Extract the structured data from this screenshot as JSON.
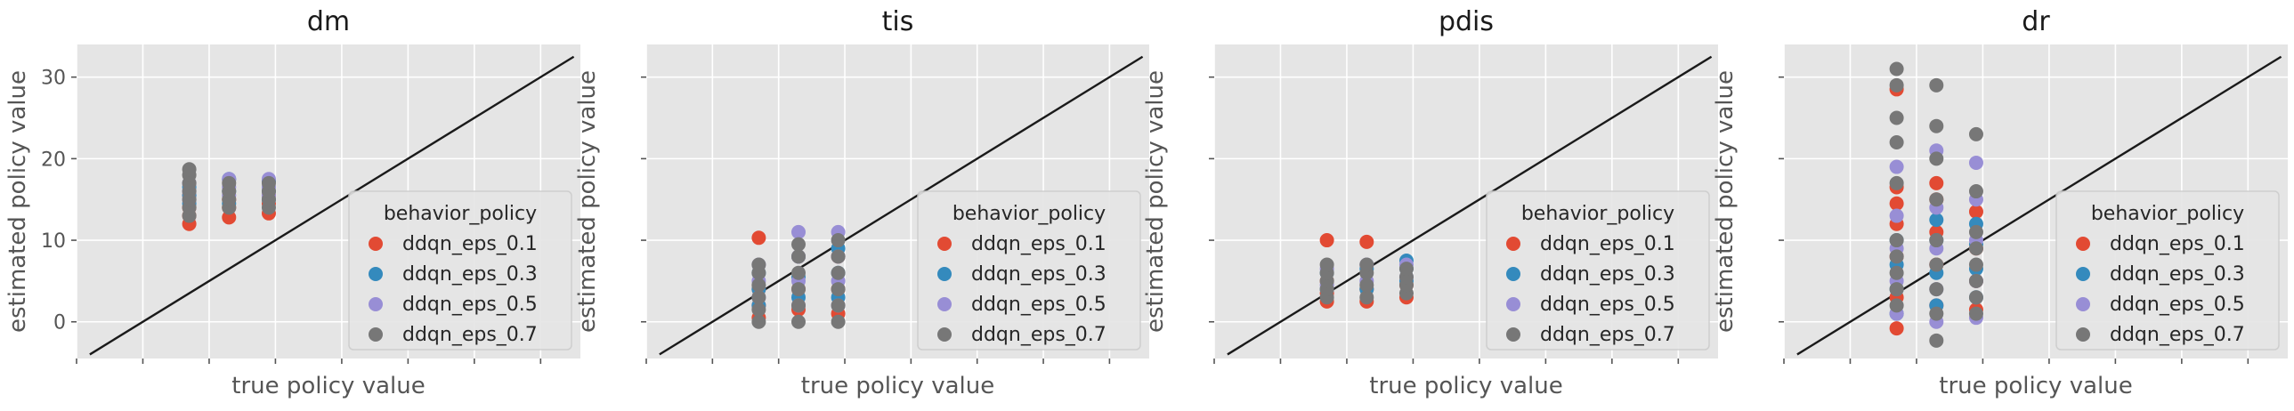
{
  "figure": {
    "legend_title": "behavior_policy",
    "colors": {
      "ddqn_eps_0.1": "#E24A33",
      "ddqn_eps_0.3": "#348ABD",
      "ddqn_eps_0.5": "#988ED5",
      "ddqn_eps_0.7": "#777777",
      "panel_bg": "#E5E5E5",
      "grid": "#FFFFFF",
      "diagonal": "#1a1a1a"
    }
  },
  "chart_data": [
    {
      "type": "scatter",
      "title": "dm",
      "xlabel": "true policy value",
      "ylabel": "estimated policy value",
      "xlim": [
        -5,
        33
      ],
      "ylim": [
        -4.5,
        34
      ],
      "yticks": [
        0,
        10,
        20,
        30
      ],
      "ytick_labels": [
        "0",
        "10",
        "20",
        "30"
      ],
      "xticks": [
        -5,
        0,
        5,
        10,
        15,
        20,
        25,
        30
      ],
      "legend": {
        "position": "lower-right",
        "title": "behavior_policy",
        "entries": [
          "ddqn_eps_0.1",
          "ddqn_eps_0.3",
          "ddqn_eps_0.5",
          "ddqn_eps_0.7"
        ]
      },
      "diagonal": {
        "from": [
          -4,
          -4
        ],
        "to": [
          32.5,
          32.5
        ]
      },
      "series": [
        {
          "name": "ddqn_eps_0.1",
          "x": [
            3.5,
            3.5,
            3.5,
            3.5,
            6.5,
            6.5,
            6.5,
            9.5,
            9.5,
            9.5
          ],
          "y": [
            12.0,
            13.0,
            14.0,
            15.5,
            12.8,
            14.0,
            15.0,
            13.3,
            14.5,
            15.5
          ]
        },
        {
          "name": "ddqn_eps_0.3",
          "x": [
            3.5,
            3.5,
            3.5,
            6.5,
            6.5,
            6.5,
            9.5,
            9.5,
            9.5
          ],
          "y": [
            14.5,
            15.5,
            16.5,
            14.5,
            16.0,
            17.5,
            15.0,
            16.0,
            17.3
          ]
        },
        {
          "name": "ddqn_eps_0.5",
          "x": [
            3.5,
            3.5,
            3.5,
            6.5,
            6.5,
            6.5,
            9.5,
            9.5,
            9.5
          ],
          "y": [
            15.0,
            16.0,
            17.0,
            15.5,
            16.5,
            17.5,
            15.5,
            16.5,
            17.5
          ]
        },
        {
          "name": "ddqn_eps_0.7",
          "x": [
            3.5,
            3.5,
            3.5,
            3.5,
            3.5,
            3.5,
            3.5,
            6.5,
            6.5,
            6.5,
            6.5,
            9.5,
            9.5,
            9.5,
            9.5
          ],
          "y": [
            13.0,
            14.0,
            15.0,
            16.0,
            17.0,
            18.0,
            18.7,
            14.0,
            15.0,
            16.0,
            17.0,
            14.0,
            15.0,
            16.0,
            17.0
          ]
        }
      ]
    },
    {
      "type": "scatter",
      "title": "tis",
      "xlabel": "true policy value",
      "ylabel": "estimated policy value",
      "xlim": [
        -5,
        33
      ],
      "ylim": [
        -4.5,
        34
      ],
      "yticks": [
        0,
        10,
        20,
        30
      ],
      "ytick_labels": [
        "",
        "",
        "",
        ""
      ],
      "xticks": [
        -5,
        0,
        5,
        10,
        15,
        20,
        25,
        30
      ],
      "legend": {
        "position": "lower-right",
        "title": "behavior_policy",
        "entries": [
          "ddqn_eps_0.1",
          "ddqn_eps_0.3",
          "ddqn_eps_0.5",
          "ddqn_eps_0.7"
        ]
      },
      "diagonal": {
        "from": [
          -4,
          -4
        ],
        "to": [
          32.5,
          32.5
        ]
      },
      "series": [
        {
          "name": "ddqn_eps_0.1",
          "x": [
            3.5,
            3.5,
            3.5,
            3.5,
            6.5,
            6.5,
            6.5,
            9.5,
            9.5,
            9.5
          ],
          "y": [
            0.5,
            2.0,
            4.0,
            10.3,
            1.5,
            4.0,
            8.0,
            1.0,
            4.0,
            8.0
          ]
        },
        {
          "name": "ddqn_eps_0.3",
          "x": [
            3.5,
            3.5,
            3.5,
            6.5,
            6.5,
            6.5,
            9.5,
            9.5,
            9.5
          ],
          "y": [
            2.0,
            4.0,
            6.0,
            3.0,
            5.5,
            8.0,
            3.0,
            6.0,
            9.0
          ]
        },
        {
          "name": "ddqn_eps_0.5",
          "x": [
            3.5,
            3.5,
            3.5,
            6.5,
            6.5,
            6.5,
            6.5,
            9.5,
            9.5,
            9.5,
            9.5
          ],
          "y": [
            3.0,
            5.0,
            7.0,
            2.0,
            5.0,
            8.0,
            11.0,
            2.0,
            5.0,
            8.0,
            11.0
          ]
        },
        {
          "name": "ddqn_eps_0.7",
          "x": [
            3.5,
            3.5,
            3.5,
            3.5,
            3.5,
            3.5,
            6.5,
            6.5,
            6.5,
            6.5,
            6.5,
            6.5,
            9.5,
            9.5,
            9.5,
            9.5,
            9.5,
            9.5
          ],
          "y": [
            0.0,
            1.5,
            3.0,
            4.5,
            6.0,
            7.0,
            0.0,
            2.0,
            4.0,
            6.0,
            8.0,
            9.5,
            0.0,
            2.0,
            4.0,
            6.0,
            8.0,
            10.0
          ]
        }
      ]
    },
    {
      "type": "scatter",
      "title": "pdis",
      "xlabel": "true policy value",
      "ylabel": "estimated policy value",
      "xlim": [
        -5,
        33
      ],
      "ylim": [
        -4.5,
        34
      ],
      "yticks": [
        0,
        10,
        20,
        30
      ],
      "ytick_labels": [
        "",
        "",
        "",
        ""
      ],
      "xticks": [
        -5,
        0,
        5,
        10,
        15,
        20,
        25,
        30
      ],
      "legend": {
        "position": "lower-right",
        "title": "behavior_policy",
        "entries": [
          "ddqn_eps_0.1",
          "ddqn_eps_0.3",
          "ddqn_eps_0.5",
          "ddqn_eps_0.7"
        ]
      },
      "diagonal": {
        "from": [
          -4,
          -4
        ],
        "to": [
          32.5,
          32.5
        ]
      },
      "series": [
        {
          "name": "ddqn_eps_0.1",
          "x": [
            3.5,
            3.5,
            3.5,
            3.5,
            6.5,
            6.5,
            6.5,
            9.5,
            9.5
          ],
          "y": [
            2.5,
            3.5,
            5.0,
            10.0,
            2.5,
            4.0,
            9.8,
            3.0,
            4.5
          ]
        },
        {
          "name": "ddqn_eps_0.3",
          "x": [
            3.5,
            3.5,
            6.5,
            6.5,
            9.5,
            9.5,
            9.5
          ],
          "y": [
            4.0,
            6.0,
            4.0,
            6.5,
            5.0,
            6.5,
            7.5
          ]
        },
        {
          "name": "ddqn_eps_0.5",
          "x": [
            3.5,
            3.5,
            6.5,
            6.5,
            9.5,
            9.5
          ],
          "y": [
            4.5,
            6.5,
            5.0,
            7.0,
            5.5,
            7.0
          ]
        },
        {
          "name": "ddqn_eps_0.7",
          "x": [
            3.5,
            3.5,
            3.5,
            3.5,
            3.5,
            6.5,
            6.5,
            6.5,
            6.5,
            9.5,
            9.5,
            9.5,
            9.5
          ],
          "y": [
            3.0,
            4.0,
            5.0,
            6.0,
            7.0,
            3.0,
            4.5,
            6.0,
            7.0,
            3.5,
            4.5,
            5.5,
            6.5
          ]
        }
      ]
    },
    {
      "type": "scatter",
      "title": "dr",
      "xlabel": "true policy value",
      "ylabel": "estimated policy value",
      "xlim": [
        -5,
        33
      ],
      "ylim": [
        -4.5,
        34
      ],
      "yticks": [
        0,
        10,
        20,
        30
      ],
      "ytick_labels": [
        "",
        "",
        "",
        ""
      ],
      "xticks": [
        -5,
        0,
        5,
        10,
        15,
        20,
        25,
        30
      ],
      "legend": {
        "position": "lower-right",
        "title": "behavior_policy",
        "entries": [
          "ddqn_eps_0.1",
          "ddqn_eps_0.3",
          "ddqn_eps_0.5",
          "ddqn_eps_0.7"
        ]
      },
      "diagonal": {
        "from": [
          -4,
          -4
        ],
        "to": [
          32.5,
          32.5
        ]
      },
      "series": [
        {
          "name": "ddqn_eps_0.1",
          "x": [
            3.5,
            3.5,
            3.5,
            3.5,
            3.5,
            3.5,
            3.5,
            6.5,
            6.5,
            6.5,
            6.5,
            6.5,
            9.5,
            9.5,
            9.5,
            9.5
          ],
          "y": [
            -0.8,
            3.0,
            8.0,
            12.0,
            14.5,
            16.5,
            28.5,
            2.0,
            7.0,
            11.0,
            15.0,
            17.0,
            1.5,
            5.0,
            9.0,
            13.5
          ]
        },
        {
          "name": "ddqn_eps_0.3",
          "x": [
            3.5,
            3.5,
            3.5,
            3.5,
            6.5,
            6.5,
            6.5,
            6.5,
            9.5,
            9.5,
            9.5,
            9.5
          ],
          "y": [
            1.0,
            4.0,
            7.0,
            10.0,
            2.0,
            6.0,
            10.0,
            12.5,
            3.0,
            6.5,
            9.5,
            12.0
          ]
        },
        {
          "name": "ddqn_eps_0.5",
          "x": [
            3.5,
            3.5,
            3.5,
            3.5,
            3.5,
            6.5,
            6.5,
            6.5,
            6.5,
            6.5,
            9.5,
            9.5,
            9.5,
            9.5,
            9.5
          ],
          "y": [
            1.0,
            5.0,
            9.0,
            13.0,
            19.0,
            0.0,
            4.0,
            9.0,
            14.0,
            21.0,
            0.5,
            5.0,
            10.0,
            15.0,
            19.5
          ]
        },
        {
          "name": "ddqn_eps_0.7",
          "x": [
            3.5,
            3.5,
            3.5,
            3.5,
            3.5,
            3.5,
            3.5,
            3.5,
            3.5,
            3.5,
            6.5,
            6.5,
            6.5,
            6.5,
            6.5,
            6.5,
            6.5,
            6.5,
            6.5,
            9.5,
            9.5,
            9.5,
            9.5,
            9.5,
            9.5,
            9.5,
            9.5
          ],
          "y": [
            2.0,
            4.0,
            6.0,
            8.0,
            10.0,
            17.0,
            22.0,
            25.0,
            29.0,
            31.0,
            -2.3,
            1.0,
            4.0,
            7.0,
            10.0,
            15.0,
            20.0,
            24.0,
            29.0,
            1.0,
            3.0,
            5.0,
            7.0,
            9.0,
            11.0,
            16.0,
            23.0
          ]
        }
      ]
    }
  ]
}
